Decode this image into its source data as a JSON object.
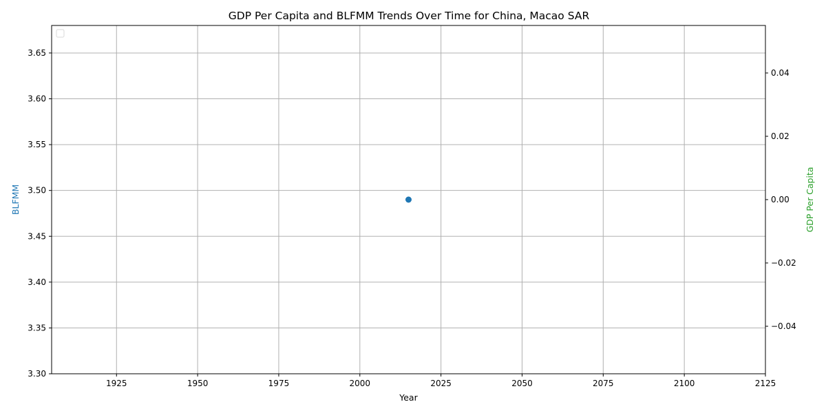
{
  "chart_data": {
    "type": "scatter",
    "title": "GDP Per Capita and BLFMM Trends Over Time for China, Macao SAR",
    "xlabel": "Year",
    "ylabel_left": "BLFMM",
    "ylabel_right": "GDP Per Capita",
    "xlim": [
      1905,
      2125
    ],
    "ylim_left": [
      3.3,
      3.68
    ],
    "ylim_right": [
      -0.055,
      0.055
    ],
    "x_ticks": [
      1925,
      1950,
      1975,
      2000,
      2025,
      2050,
      2075,
      2100,
      2125
    ],
    "y_ticks_left": [
      3.3,
      3.35,
      3.4,
      3.45,
      3.5,
      3.55,
      3.6,
      3.65
    ],
    "y_ticks_left_labels": [
      "3.30",
      "3.35",
      "3.40",
      "3.45",
      "3.50",
      "3.55",
      "3.60",
      "3.65"
    ],
    "y_ticks_right": [
      -0.04,
      -0.02,
      0.0,
      0.02,
      0.04
    ],
    "y_ticks_right_labels": [
      "−0.04",
      "−0.02",
      "0.00",
      "0.02",
      "0.04"
    ],
    "grid": true,
    "legend": "top-left",
    "series": [
      {
        "axis": "left",
        "x": [
          2015
        ],
        "y": [
          3.49
        ]
      }
    ],
    "colors": {
      "blfmm": "#1f77b4",
      "gdp": "#2ca02c",
      "grid": "#b0b0b0",
      "axes": "#000000"
    }
  }
}
